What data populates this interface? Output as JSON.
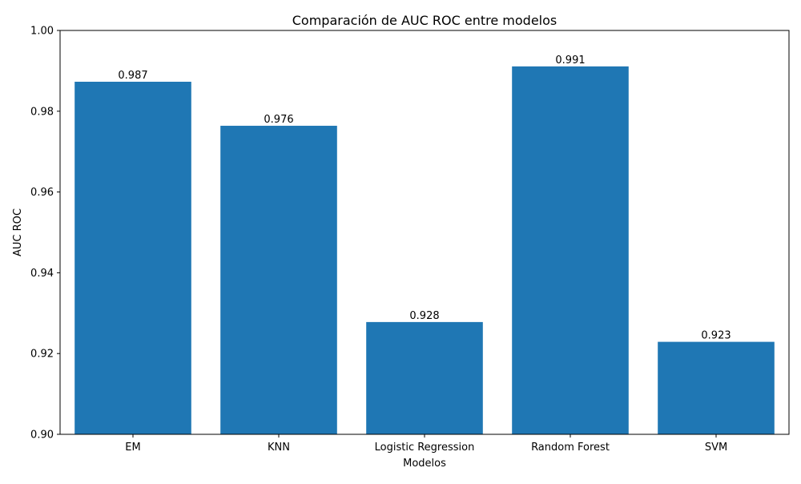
{
  "chart_data": {
    "type": "bar",
    "title": "Comparación de AUC ROC entre modelos",
    "xlabel": "Modelos",
    "ylabel": "AUC ROC",
    "categories": [
      "EM",
      "KNN",
      "Logistic Regression",
      "Random Forest",
      "SVM"
    ],
    "values": [
      0.9873,
      0.9764,
      0.9278,
      0.9911,
      0.9229
    ],
    "data_labels": [
      "0.987",
      "0.976",
      "0.928",
      "0.991",
      "0.923"
    ],
    "ylim": [
      0.9,
      1.0
    ],
    "yticks": [
      0.9,
      0.92,
      0.94,
      0.96,
      0.98,
      1.0
    ],
    "ytick_labels": [
      "0.90",
      "0.92",
      "0.94",
      "0.96",
      "0.98",
      "1.00"
    ],
    "bar_color": "#1f77b4",
    "grid": false,
    "legend": false
  }
}
